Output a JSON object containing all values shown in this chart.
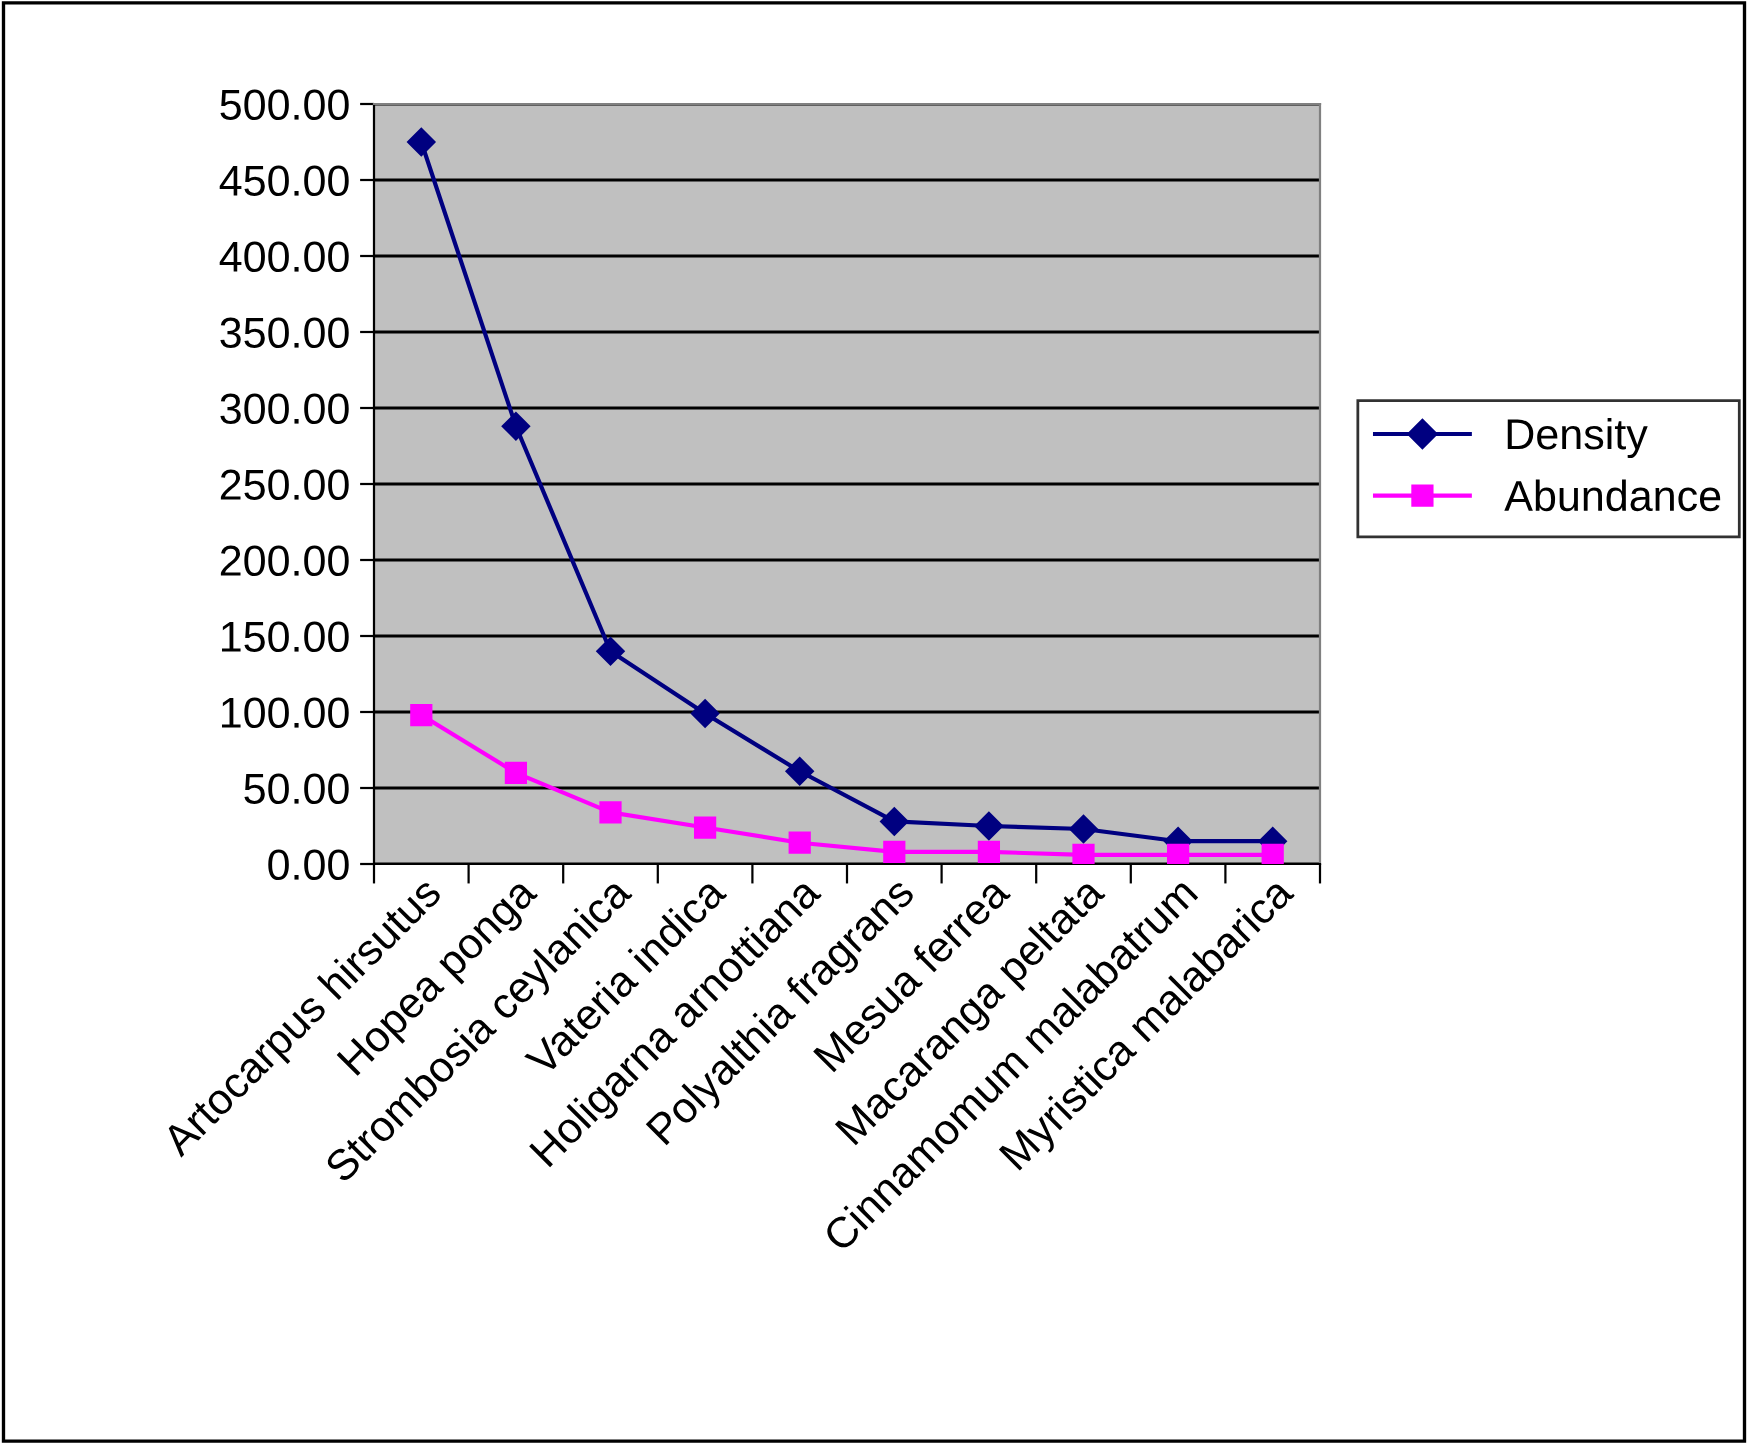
{
  "chart_data": {
    "type": "line",
    "categories": [
      "Artocarpus hirsutus",
      "Hopea ponga",
      "Strombosia ceylanica",
      "Vateria indica",
      "Holigarna arnottiana",
      "Polyalthia fragrans",
      "Mesua ferrea",
      "Macaranga peltata",
      "Cinnamomum malabatrum",
      "Myristica malabarica"
    ],
    "series": [
      {
        "name": "Density",
        "color": "#000080",
        "marker": "diamond",
        "values": [
          475,
          288,
          140,
          99,
          61,
          28,
          25,
          23,
          15,
          15
        ]
      },
      {
        "name": "Abundance",
        "color": "#ff00ff",
        "marker": "square",
        "values": [
          98,
          60,
          34,
          24,
          14,
          8,
          8,
          6,
          6,
          6
        ]
      }
    ],
    "ylim": [
      0,
      500
    ],
    "yticks": [
      {
        "value": 0,
        "label": "0.00"
      },
      {
        "value": 50,
        "label": "50.00"
      },
      {
        "value": 100,
        "label": "100.00"
      },
      {
        "value": 150,
        "label": "150.00"
      },
      {
        "value": 200,
        "label": "200.00"
      },
      {
        "value": 250,
        "label": "250.00"
      },
      {
        "value": 300,
        "label": "300.00"
      },
      {
        "value": 350,
        "label": "350.00"
      },
      {
        "value": 400,
        "label": "400.00"
      },
      {
        "value": 450,
        "label": "450.00"
      },
      {
        "value": 500,
        "label": "500.00"
      }
    ],
    "grid": "y",
    "legend": "right",
    "line_style": "solid"
  }
}
